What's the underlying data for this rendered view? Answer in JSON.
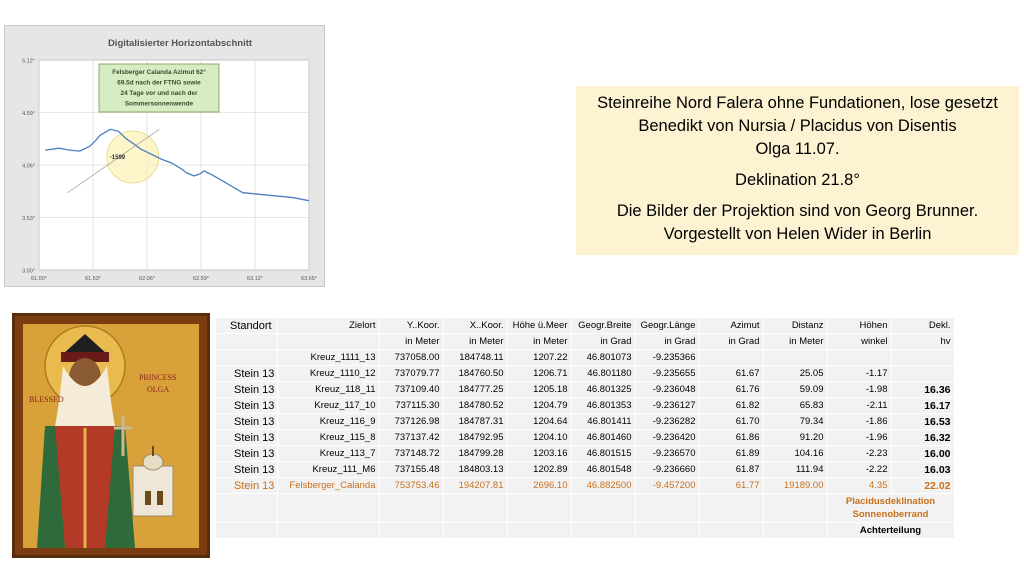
{
  "chart_data": {
    "type": "line",
    "title": "Digitalisierter Horizontabschnitt",
    "x_ticks": [
      "61.00°",
      "61.53°",
      "62.06°",
      "62.59°",
      "63.12°",
      "63.65°"
    ],
    "y_ticks": [
      "5.12°",
      "4.59°",
      "4.06°",
      "3.53°",
      "3.00°"
    ],
    "xlim": [
      61.0,
      63.65
    ],
    "ylim": [
      3.0,
      5.12
    ],
    "grid": true,
    "x": [
      61.06,
      61.2,
      61.3,
      61.4,
      61.5,
      61.55,
      61.6,
      61.7,
      61.78,
      61.85,
      61.92,
      62.0,
      62.08,
      62.2,
      62.3,
      62.4,
      62.45,
      62.52,
      62.58,
      62.62,
      62.7,
      62.8,
      62.9,
      63.0,
      63.1,
      63.2,
      63.3,
      63.4,
      63.5,
      63.6,
      63.65
    ],
    "y": [
      4.21,
      4.23,
      4.21,
      4.2,
      4.25,
      4.3,
      4.36,
      4.42,
      4.4,
      4.33,
      4.28,
      4.22,
      4.18,
      4.12,
      4.08,
      4.02,
      3.98,
      3.95,
      3.97,
      4.0,
      3.96,
      3.9,
      3.84,
      3.78,
      3.77,
      3.76,
      3.75,
      3.74,
      3.73,
      3.71,
      3.7
    ],
    "annotations": {
      "callout": [
        "Felsberger Calanda Azimut 62°",
        "69.5d nach der FTNG sowie",
        "24 Tage vor und nach der",
        "Sommersonnenwende"
      ],
      "marker_label": "-1599"
    },
    "colors": {
      "line": "#4a7fc1",
      "callout_bg": "#d8ecc4",
      "callout_border": "#6e9b4c",
      "highlight": "#fbf3b8"
    }
  },
  "info": {
    "line1": "Steinreihe Nord Falera ohne Fundationen, lose gesetzt",
    "line2": "Benedikt von Nursia / Placidus von Disentis",
    "line3": "Olga 11.07.",
    "line4": "Deklination 21.8°",
    "line5": "Die Bilder der Projektion sind von Georg Brunner.",
    "line6": "Vorgestellt von Helen Wider in Berlin"
  },
  "icon": {
    "left_text": "BLESSED",
    "right_text_1": "PRINCESS",
    "right_text_2": "OLGA"
  },
  "table": {
    "header": [
      "Standort",
      "Zielort",
      "Y..Koor.",
      "X..Koor.",
      "Höhe ü.Meer",
      "Geogr.Breite",
      "Geogr.Länge",
      "Azimut",
      "Distanz",
      "Höhen",
      "Dekl."
    ],
    "units": [
      "",
      "",
      "in Meter",
      "in Meter",
      "in Meter",
      "in Grad",
      "in Grad",
      "in Grad",
      "in Meter",
      "winkel",
      "hv"
    ],
    "rows": [
      [
        "",
        "Kreuz_1111_13",
        "737058.00",
        "184748.11",
        "1207.22",
        "46.801073",
        "-9.235366",
        "",
        "",
        "",
        ""
      ],
      [
        "Stein 13",
        "Kreuz_1110_12",
        "737079.77",
        "184760.50",
        "1206.71",
        "46.801180",
        "-9.235655",
        "61.67",
        "25.05",
        "-1.17",
        ""
      ],
      [
        "Stein 13",
        "Kreuz_118_11",
        "737109.40",
        "184777.25",
        "1205.18",
        "46.801325",
        "-9.236048",
        "61.76",
        "59.09",
        "-1.98",
        "16.36"
      ],
      [
        "Stein 13",
        "Kreuz_117_10",
        "737115.30",
        "184780.52",
        "1204.79",
        "46.801353",
        "-9.236127",
        "61.82",
        "65.83",
        "-2.11",
        "16.17"
      ],
      [
        "Stein 13",
        "Kreuz_116_9",
        "737126.98",
        "184787.31",
        "1204.64",
        "46.801411",
        "-9.236282",
        "61.70",
        "79.34",
        "-1.86",
        "16.53"
      ],
      [
        "Stein 13",
        "Kreuz_115_8",
        "737137.42",
        "184792.95",
        "1204.10",
        "46.801460",
        "-9.236420",
        "61.86",
        "91.20",
        "-1.96",
        "16.32"
      ],
      [
        "Stein 13",
        "Kreuz_113_7",
        "737148.72",
        "184799.28",
        "1203.16",
        "46.801515",
        "-9.236570",
        "61.89",
        "104.16",
        "-2.23",
        "16.00"
      ],
      [
        "Stein 13",
        "Kreuz_111_M6",
        "737155.48",
        "184803.13",
        "1202.89",
        "46.801548",
        "-9.236660",
        "61.87",
        "111.94",
        "-2.22",
        "16.03"
      ],
      [
        "Stein 13",
        "Felsberger_Calanda",
        "753753.46",
        "194207.81",
        "2696.10",
        "46.882500",
        "-9.457200",
        "61.77",
        "19189.00",
        "4.35",
        "22.02"
      ]
    ],
    "footer1": "Placidusdeklination Sonnenoberrand",
    "footer2": "Achterteilung",
    "highlight_color": "#c8701a"
  }
}
